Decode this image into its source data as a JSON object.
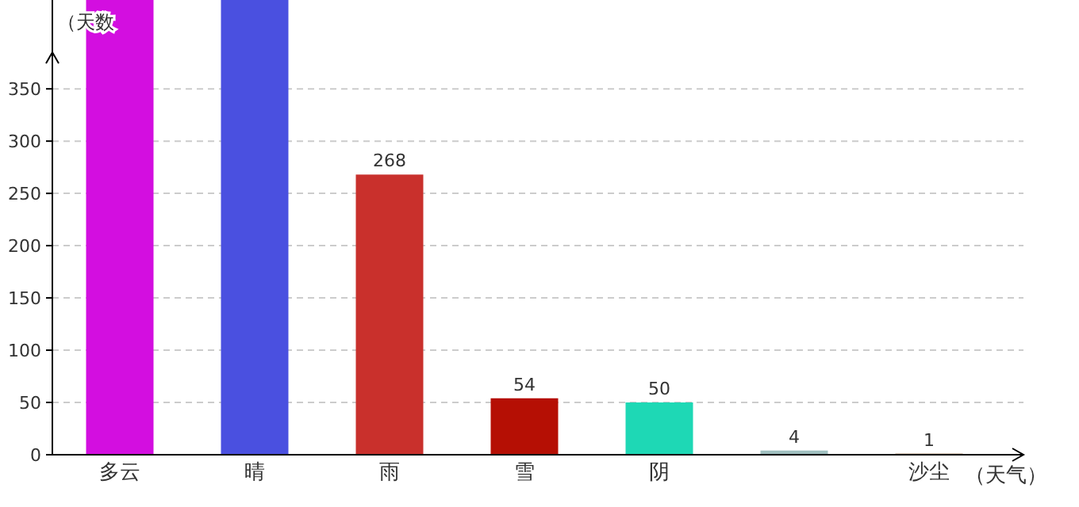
{
  "chart_data": {
    "type": "bar",
    "ylabel": "（天数",
    "xlabel": "（天气）",
    "categories": [
      "多云",
      "晴",
      "雨",
      "雪",
      "阴",
      null,
      "沙尘"
    ],
    "values": [
      435,
      435,
      268,
      54,
      50,
      4,
      1
    ],
    "value_labels": [
      null,
      null,
      "268",
      "54",
      "50",
      "4",
      "1"
    ],
    "colors": [
      "#d30ee0",
      "#4a50e0",
      "#c9302c",
      "#b50f04",
      "#1ed8b5",
      "#9fbfbf",
      "#8b5a2b"
    ],
    "ylim": [
      0,
      435
    ],
    "yticks": [
      0,
      50,
      100,
      150,
      200,
      250,
      300,
      350
    ],
    "grid": "y"
  }
}
